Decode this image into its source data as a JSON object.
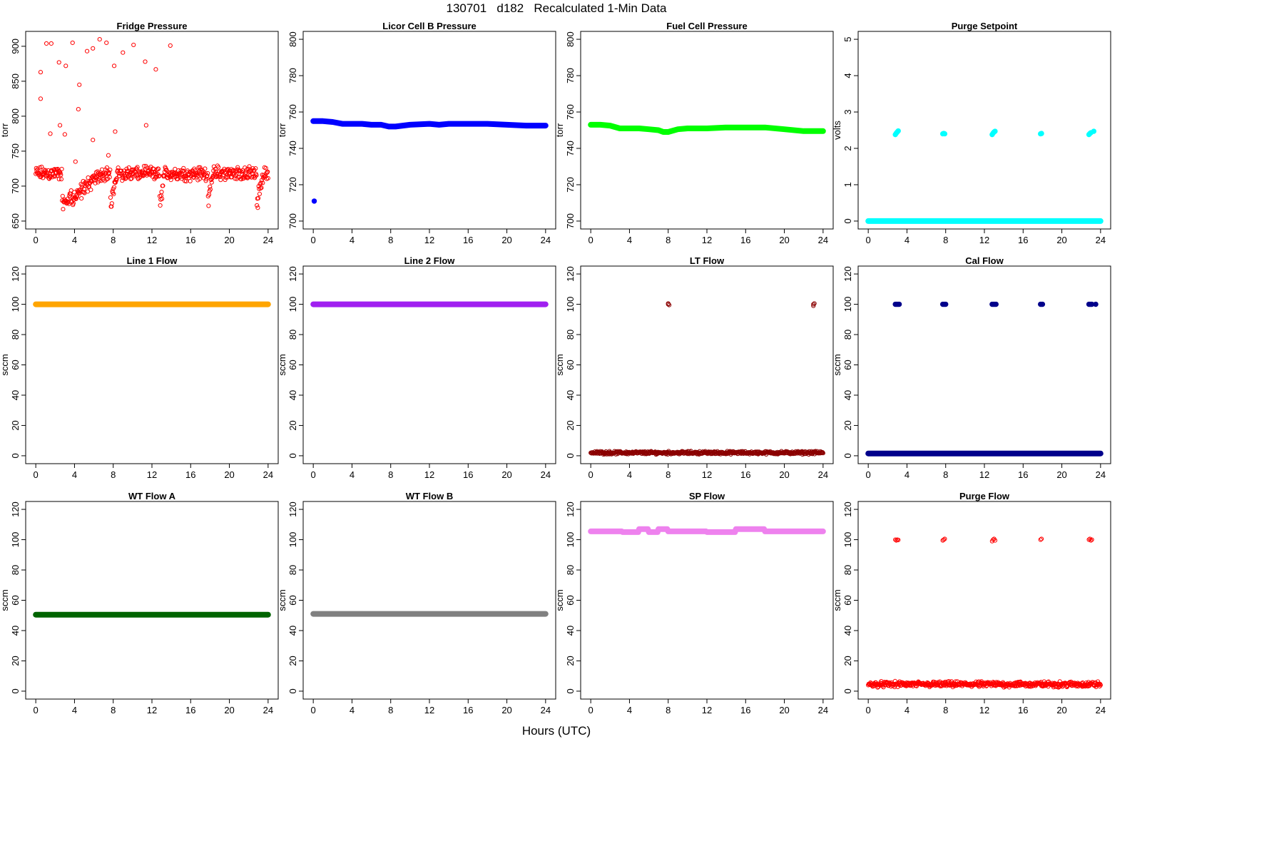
{
  "title": "130701   d182   Recalculated 1-Min Data",
  "xlabel": "Hours (UTC)",
  "x_ticks": [
    0,
    4,
    8,
    12,
    16,
    20,
    24
  ],
  "chart_data": [
    {
      "type": "scatter",
      "title": "Fridge Pressure",
      "ylabel": "torr",
      "ylim": [
        650,
        910
      ],
      "y_ticks": [
        650,
        700,
        750,
        800,
        850,
        900
      ],
      "xlim": [
        0,
        24
      ],
      "color": "#ff0000",
      "marker": "open-circle",
      "series": [
        {
          "kind": "noise",
          "x_range": [
            0,
            24
          ],
          "base": 718,
          "spread": 12,
          "dips": [
            [
              2.7,
              4,
              660
            ],
            [
              7.7,
              0.7,
              660
            ],
            [
              12.8,
              0.5,
              662
            ],
            [
              17.8,
              0.5,
              665
            ],
            [
              22.8,
              0.7,
              660
            ]
          ]
        },
        {
          "kind": "points",
          "x": [
            0.5,
            0.5,
            1.1,
            1.5,
            1.6,
            2.4,
            2.5,
            3.0,
            3.1,
            3.8,
            4.1,
            4.4,
            4.5,
            5.3,
            5.9,
            5.9,
            6.6,
            7.3,
            7.5,
            8.1,
            8.2,
            9.0,
            10.1,
            11.3,
            11.4,
            12.4,
            13.9
          ],
          "y": [
            863,
            825,
            904,
            775,
            904,
            877,
            787,
            774,
            872,
            905,
            735,
            810,
            845,
            893,
            897,
            766,
            910,
            905,
            744,
            872,
            778,
            891,
            902,
            878,
            787,
            867,
            901
          ]
        }
      ]
    },
    {
      "type": "line",
      "title": "Licor Cell B Pressure",
      "ylabel": "torr",
      "ylim": [
        700,
        800
      ],
      "y_ticks": [
        700,
        720,
        740,
        760,
        780,
        800
      ],
      "xlim": [
        0,
        24
      ],
      "color": "#0000ff",
      "marker": "filled",
      "series": [
        {
          "kind": "line",
          "x": [
            0,
            1,
            2,
            3,
            4,
            5,
            6,
            7,
            7.8,
            8.5,
            10,
            12,
            13,
            14,
            16,
            18,
            20,
            22,
            24
          ],
          "y": [
            755,
            755,
            754.5,
            753.5,
            753.5,
            753.5,
            753,
            753,
            752,
            752,
            753,
            753.5,
            753,
            753.5,
            753.5,
            753.5,
            753,
            752.5,
            752.5
          ]
        },
        {
          "kind": "points",
          "x": [
            0.1
          ],
          "y": [
            711
          ]
        }
      ]
    },
    {
      "type": "line",
      "title": "Fuel Cell Pressure",
      "ylabel": "torr",
      "ylim": [
        700,
        800
      ],
      "y_ticks": [
        700,
        720,
        740,
        760,
        780,
        800
      ],
      "xlim": [
        0,
        24
      ],
      "color": "#00ff00",
      "marker": "filled",
      "series": [
        {
          "kind": "line",
          "x": [
            0,
            1,
            2,
            3,
            4,
            5,
            6,
            7,
            7.5,
            8,
            9,
            10,
            12,
            14,
            16,
            18,
            20,
            22,
            24
          ],
          "y": [
            753,
            753,
            752.5,
            751,
            751,
            751,
            750.5,
            750,
            749,
            749,
            750.5,
            751,
            751,
            751.5,
            751.5,
            751.5,
            750.5,
            749.5,
            749.5
          ]
        }
      ]
    },
    {
      "type": "scatter",
      "title": "Purge Setpoint",
      "ylabel": "volts",
      "ylim": [
        0,
        5
      ],
      "y_ticks": [
        0,
        1,
        2,
        3,
        4,
        5
      ],
      "xlim": [
        0,
        24
      ],
      "color": "#00ffff",
      "marker": "filled",
      "series": [
        {
          "kind": "line",
          "x": [
            0,
            24
          ],
          "y": [
            0,
            0
          ]
        },
        {
          "kind": "points",
          "x": [
            2.8,
            2.9,
            3.0,
            3.1,
            7.7,
            7.8,
            7.9,
            12.8,
            12.9,
            13.0,
            13.1,
            17.8,
            17.9,
            22.8,
            22.9,
            23.0,
            23.3
          ],
          "y": [
            2.38,
            2.42,
            2.45,
            2.48,
            2.4,
            2.41,
            2.4,
            2.38,
            2.42,
            2.45,
            2.47,
            2.4,
            2.41,
            2.38,
            2.41,
            2.43,
            2.47
          ]
        }
      ]
    },
    {
      "type": "line",
      "title": "Line 1 Flow",
      "ylabel": "sccm",
      "ylim": [
        0,
        120
      ],
      "y_ticks": [
        0,
        20,
        40,
        60,
        80,
        100,
        120
      ],
      "xlim": [
        0,
        24
      ],
      "color": "#ffa500",
      "marker": "filled",
      "series": [
        {
          "kind": "line",
          "x": [
            0,
            24
          ],
          "y": [
            100,
            100
          ]
        }
      ]
    },
    {
      "type": "line",
      "title": "Line 2 Flow",
      "ylabel": "sccm",
      "ylim": [
        0,
        120
      ],
      "y_ticks": [
        0,
        20,
        40,
        60,
        80,
        100,
        120
      ],
      "xlim": [
        0,
        24
      ],
      "color": "#a020f0",
      "marker": "filled",
      "series": [
        {
          "kind": "line",
          "x": [
            0,
            24
          ],
          "y": [
            100,
            100
          ]
        }
      ]
    },
    {
      "type": "scatter",
      "title": "LT Flow",
      "ylabel": "sccm",
      "ylim": [
        0,
        120
      ],
      "y_ticks": [
        0,
        20,
        40,
        60,
        80,
        100,
        120
      ],
      "xlim": [
        0,
        24
      ],
      "color": "#8b0000",
      "marker": "open-circle",
      "series": [
        {
          "kind": "noise",
          "x_range": [
            0,
            24
          ],
          "base": 2,
          "spread": 1.2,
          "dips": []
        },
        {
          "kind": "points",
          "x": [
            8.0,
            8.1,
            8.0,
            23.0,
            23.1,
            23.0
          ],
          "y": [
            100,
            99.5,
            100.5,
            100,
            100.5,
            99
          ]
        }
      ]
    },
    {
      "type": "scatter",
      "title": "Cal Flow",
      "ylabel": "sccm",
      "ylim": [
        0,
        120
      ],
      "y_ticks": [
        0,
        20,
        40,
        60,
        80,
        100,
        120
      ],
      "xlim": [
        0,
        24
      ],
      "color": "#00008b",
      "marker": "filled",
      "series": [
        {
          "kind": "line",
          "x": [
            0,
            24
          ],
          "y": [
            1.5,
            1.5
          ]
        },
        {
          "kind": "points",
          "x": [
            2.8,
            2.9,
            3.0,
            3.1,
            3.2,
            7.7,
            7.8,
            7.9,
            8.0,
            12.8,
            12.9,
            13.0,
            13.1,
            13.2,
            17.8,
            17.9,
            18.0,
            22.8,
            22.9,
            23.0,
            23.1,
            23.5
          ],
          "y": [
            100,
            100,
            100,
            100,
            100,
            100,
            100,
            100,
            100,
            100,
            100,
            100,
            100,
            100,
            100,
            100,
            100,
            100,
            100,
            100,
            100,
            100
          ]
        }
      ]
    },
    {
      "type": "line",
      "title": "WT Flow A",
      "ylabel": "sccm",
      "ylim": [
        0,
        120
      ],
      "y_ticks": [
        0,
        20,
        40,
        60,
        80,
        100,
        120
      ],
      "xlim": [
        0,
        24
      ],
      "color": "#006400",
      "marker": "filled",
      "series": [
        {
          "kind": "line",
          "x": [
            0,
            24
          ],
          "y": [
            50.5,
            50.5
          ]
        }
      ]
    },
    {
      "type": "line",
      "title": "WT Flow B",
      "ylabel": "sccm",
      "ylim": [
        0,
        120
      ],
      "y_ticks": [
        0,
        20,
        40,
        60,
        80,
        100,
        120
      ],
      "xlim": [
        0,
        24
      ],
      "color": "#808080",
      "marker": "filled",
      "series": [
        {
          "kind": "line",
          "x": [
            0,
            24
          ],
          "y": [
            51,
            51
          ]
        }
      ]
    },
    {
      "type": "line",
      "title": "SP Flow",
      "ylabel": "sccm",
      "ylim": [
        0,
        120
      ],
      "y_ticks": [
        0,
        20,
        40,
        60,
        80,
        100,
        120
      ],
      "xlim": [
        0,
        24
      ],
      "color": "#ee82ee",
      "marker": "filled",
      "series": [
        {
          "kind": "line",
          "x": [
            0,
            3.2,
            3.3,
            4.9,
            5.0,
            5.9,
            6.0,
            6.9,
            7.0,
            7.9,
            8.0,
            11.9,
            12.0,
            14.9,
            15.0,
            17.9,
            18.0,
            24
          ],
          "y": [
            105.5,
            105.5,
            105,
            105,
            107,
            107,
            105,
            105,
            107,
            107,
            105.5,
            105.5,
            105,
            105,
            107,
            107,
            105.5,
            105.5
          ]
        }
      ]
    },
    {
      "type": "scatter",
      "title": "Purge Flow",
      "ylabel": "sccm",
      "ylim": [
        0,
        120
      ],
      "y_ticks": [
        0,
        20,
        40,
        60,
        80,
        100,
        120
      ],
      "xlim": [
        0,
        24
      ],
      "color": "#ff0000",
      "marker": "open-circle",
      "series": [
        {
          "kind": "noise",
          "x_range": [
            0,
            24
          ],
          "base": 4.5,
          "spread": 2.2,
          "dips": []
        },
        {
          "kind": "points",
          "x": [
            2.8,
            2.9,
            3.0,
            3.1,
            7.7,
            7.8,
            7.9,
            12.8,
            12.9,
            13.0,
            13.1,
            17.8,
            17.9,
            22.8,
            22.9,
            23.0,
            23.1
          ],
          "y": [
            100,
            99.5,
            100,
            99.8,
            99.5,
            100,
            100.5,
            99,
            100,
            100.5,
            99.5,
            100,
            100.5,
            100,
            100.5,
            99.5,
            100
          ]
        }
      ]
    }
  ]
}
